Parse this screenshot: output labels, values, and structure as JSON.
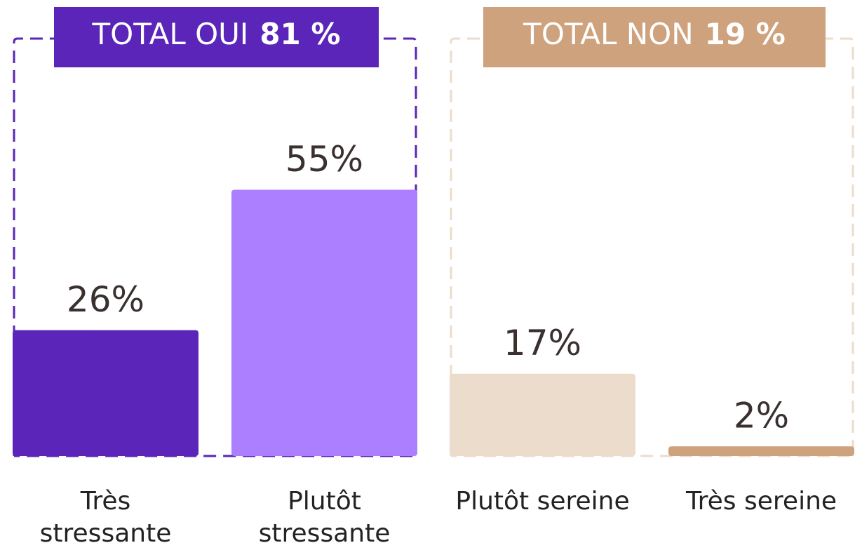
{
  "chart_data": {
    "type": "bar",
    "categories": [
      "Très stressante",
      "Plutôt stressante",
      "Plutôt sereine",
      "Très sereine"
    ],
    "values": [
      26,
      55,
      17,
      2
    ],
    "value_labels": [
      "26%",
      "55%",
      "17%",
      "2%"
    ],
    "colors": [
      "#5a25b8",
      "#ab7fff",
      "#ecdccb",
      "#cfa27e"
    ],
    "groups": [
      {
        "label": "TOTAL OUI",
        "total": 81,
        "total_label": "81 %",
        "color": "#5a25b8",
        "line_color": "#5a25b8"
      },
      {
        "label": "TOTAL NON",
        "total": 19,
        "total_label": "19 %",
        "color": "#cfa27e",
        "line_color": "#ecdccb"
      }
    ]
  }
}
